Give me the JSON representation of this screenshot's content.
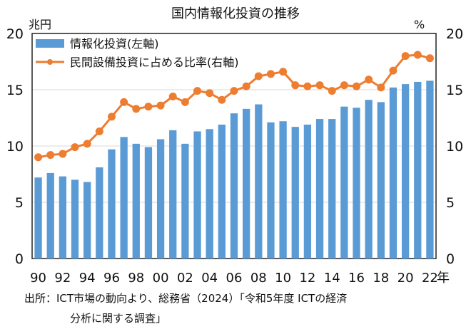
{
  "chart_data": {
    "type": "bar+line",
    "title": "国内情報化投資の推移",
    "left_unit": "兆円",
    "right_unit": "%",
    "year_suffix": "年",
    "ylim_left": [
      0,
      20
    ],
    "ylim_right": [
      0,
      20
    ],
    "y_ticks": [
      "0",
      "5",
      "10",
      "15",
      "20"
    ],
    "x_tick_labels": [
      "90",
      "92",
      "94",
      "96",
      "98",
      "00",
      "02",
      "04",
      "06",
      "08",
      "10",
      "12",
      "14",
      "16",
      "18",
      "20",
      "22"
    ],
    "years": [
      1990,
      1991,
      1992,
      1993,
      1994,
      1995,
      1996,
      1997,
      1998,
      1999,
      2000,
      2001,
      2002,
      2003,
      2004,
      2005,
      2006,
      2007,
      2008,
      2009,
      2010,
      2011,
      2012,
      2013,
      2014,
      2015,
      2016,
      2017,
      2018,
      2019,
      2020,
      2021,
      2022
    ],
    "grid": true,
    "legend_position": "top-left",
    "series": [
      {
        "name": "情報化投資(左軸)",
        "type": "bar",
        "axis": "left",
        "color": "#5b9bd5",
        "values": [
          7.2,
          7.6,
          7.3,
          7.0,
          6.8,
          8.1,
          9.7,
          10.8,
          10.2,
          9.9,
          10.6,
          11.4,
          10.2,
          11.3,
          11.5,
          11.9,
          12.9,
          13.3,
          13.7,
          12.1,
          12.2,
          11.7,
          11.9,
          12.4,
          12.4,
          13.5,
          13.4,
          14.1,
          13.9,
          15.2,
          15.5,
          15.7,
          15.8
        ]
      },
      {
        "name": "民間設備投資に占める比率(右軸)",
        "type": "line",
        "axis": "right",
        "color": "#ed7d31",
        "values": [
          9.0,
          9.2,
          9.3,
          9.9,
          10.2,
          11.3,
          12.6,
          13.9,
          13.3,
          13.5,
          13.6,
          14.4,
          13.9,
          14.9,
          14.7,
          14.1,
          14.9,
          15.3,
          16.2,
          16.4,
          16.6,
          15.4,
          15.3,
          15.4,
          14.9,
          15.4,
          15.3,
          15.9,
          15.2,
          16.7,
          18.0,
          18.1,
          17.8
        ]
      }
    ]
  },
  "source": {
    "line1": "出所：ICT市場の動向より、総務省（2024）「令和5年度 ICTの経済",
    "line2": "分析に関する調査」"
  }
}
